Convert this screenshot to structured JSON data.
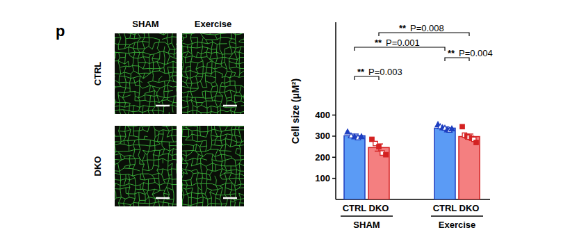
{
  "chart_data": {
    "type": "bar",
    "panel_label": "p",
    "image_panel": {
      "columns": [
        "SHAM",
        "Exercise"
      ],
      "rows": [
        "CTRL",
        "DKO"
      ]
    },
    "y_label": "Cell size (μM²)",
    "categories": [
      "CTRL",
      "DKO",
      "CTRL",
      "DKO"
    ],
    "groups": [
      {
        "label": "SHAM",
        "categories": [
          0,
          1
        ]
      },
      {
        "label": "Exercise",
        "categories": [
          2,
          3
        ]
      }
    ],
    "values": [
      302,
      246,
      338,
      298
    ],
    "errors": [
      8,
      17,
      6,
      12
    ],
    "colors": [
      "#5b9bf5",
      "#f47f80",
      "#5b9bf5",
      "#f47f80"
    ],
    "markers": [
      "triangle",
      "square",
      "triangle",
      "square"
    ],
    "points": [
      [
        320,
        302,
        297,
        293,
        298
      ],
      [
        285,
        265,
        250,
        220,
        212
      ],
      [
        355,
        345,
        340,
        338,
        330,
        328,
        335
      ],
      [
        345,
        305,
        300,
        295,
        290,
        285,
        270
      ]
    ],
    "annotations": [
      {
        "from": 0,
        "to": 1,
        "stars": "**",
        "p": "P=0.003"
      },
      {
        "from": 2,
        "to": 3,
        "stars": "**",
        "p": "P=0.004"
      },
      {
        "from": 0,
        "to": 2,
        "stars": "**",
        "p": "P=0.001"
      },
      {
        "from": 1,
        "to": 3,
        "stars": "**",
        "p": "P=0.008"
      }
    ],
    "ylim": [
      0,
      840
    ],
    "yticks": [
      100,
      200,
      300,
      400
    ]
  }
}
